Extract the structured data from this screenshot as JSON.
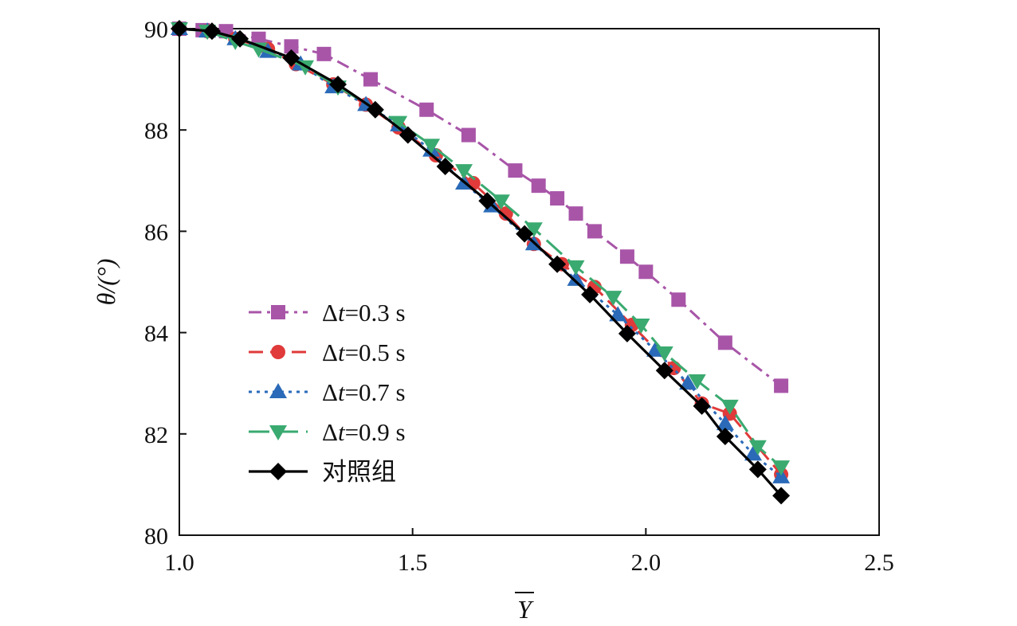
{
  "chart_data": {
    "type": "line",
    "title": "",
    "xlabel": "Y",
    "ylabel": "θ/(°)",
    "xlim": [
      1.0,
      2.5
    ],
    "ylim": [
      80,
      90
    ],
    "xticks": [
      "1.0",
      "1.5",
      "2.0",
      "2.5"
    ],
    "yticks": [
      "80",
      "82",
      "84",
      "86",
      "88",
      "90"
    ],
    "grid": false,
    "legend_position": "center-left",
    "series": [
      {
        "name": "Δt=0.3 s",
        "delta_symbol": "Δ",
        "var": "t",
        "rest": "=0.3 s",
        "color": "#a855a8",
        "marker": "square",
        "dash": "dashdot",
        "x": [
          1.0,
          1.05,
          1.1,
          1.17,
          1.24,
          1.31,
          1.41,
          1.53,
          1.62,
          1.72,
          1.77,
          1.81,
          1.85,
          1.89,
          1.96,
          2.0,
          2.07,
          2.17,
          2.29
        ],
        "y": [
          90.0,
          89.97,
          89.95,
          89.8,
          89.65,
          89.5,
          89.0,
          88.4,
          87.9,
          87.2,
          86.9,
          86.65,
          86.35,
          86.0,
          85.5,
          85.2,
          84.65,
          83.8,
          82.95
        ]
      },
      {
        "name": "Δt=0.5 s",
        "delta_symbol": "Δ",
        "var": "t",
        "rest": "=0.5 s",
        "color": "#e03a3a",
        "marker": "circle",
        "dash": "dash",
        "x": [
          1.0,
          1.06,
          1.12,
          1.19,
          1.25,
          1.33,
          1.4,
          1.47,
          1.55,
          1.63,
          1.7,
          1.76,
          1.82,
          1.89,
          1.97,
          2.06,
          2.12,
          2.18,
          2.29
        ],
        "y": [
          90.0,
          89.95,
          89.8,
          89.6,
          89.3,
          88.9,
          88.5,
          88.05,
          87.5,
          86.95,
          86.35,
          85.75,
          85.35,
          84.9,
          84.15,
          83.3,
          82.6,
          82.4,
          81.2
        ]
      },
      {
        "name": "Δt=0.7 s",
        "delta_symbol": "Δ",
        "var": "t",
        "rest": "=0.7 s",
        "color": "#2a6ab8",
        "marker": "triangle-up",
        "dash": "dot",
        "x": [
          1.0,
          1.06,
          1.12,
          1.19,
          1.26,
          1.33,
          1.4,
          1.47,
          1.54,
          1.61,
          1.67,
          1.76,
          1.85,
          1.94,
          2.02,
          2.09,
          2.17,
          2.23,
          2.29
        ],
        "y": [
          90.0,
          89.95,
          89.8,
          89.55,
          89.3,
          88.85,
          88.5,
          88.1,
          87.6,
          86.95,
          86.5,
          85.75,
          85.05,
          84.35,
          83.65,
          83.0,
          82.2,
          81.6,
          81.15
        ]
      },
      {
        "name": "Δt=0.9 s",
        "delta_symbol": "Δ",
        "var": "t",
        "rest": "=0.9 s",
        "color": "#3aaa70",
        "marker": "triangle-down",
        "dash": "longdash",
        "x": [
          1.0,
          1.06,
          1.12,
          1.17,
          1.27,
          1.34,
          1.47,
          1.54,
          1.61,
          1.69,
          1.76,
          1.85,
          1.93,
          1.99,
          2.04,
          2.11,
          2.18,
          2.24,
          2.29
        ],
        "y": [
          90.0,
          89.95,
          89.75,
          89.6,
          89.25,
          88.85,
          88.15,
          87.7,
          87.2,
          86.6,
          86.05,
          85.3,
          84.7,
          84.15,
          83.6,
          83.05,
          82.55,
          81.75,
          81.35
        ]
      },
      {
        "name": "对照组",
        "color": "#000000",
        "marker": "diamond",
        "dash": "solid",
        "x": [
          1.0,
          1.07,
          1.13,
          1.24,
          1.34,
          1.42,
          1.49,
          1.57,
          1.66,
          1.74,
          1.81,
          1.88,
          1.96,
          2.04,
          2.12,
          2.17,
          2.24,
          2.29
        ],
        "y": [
          90.0,
          89.95,
          89.8,
          89.42,
          88.9,
          88.4,
          87.9,
          87.28,
          86.6,
          85.95,
          85.35,
          84.75,
          83.98,
          83.25,
          82.55,
          81.95,
          81.3,
          80.78
        ]
      }
    ]
  }
}
